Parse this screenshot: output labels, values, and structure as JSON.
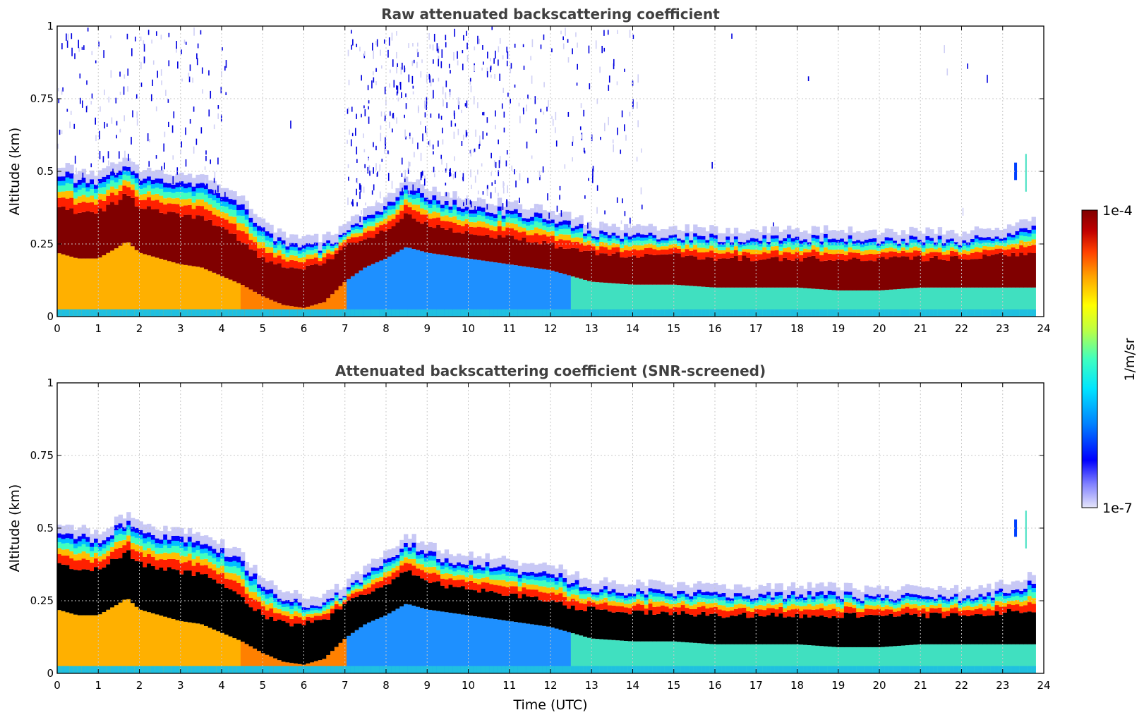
{
  "chart_data": [
    {
      "type": "heatmap",
      "title": "Raw attenuated backscattering coefficient",
      "xlabel": "",
      "ylabel": "Altitude (km)",
      "xlim": [
        0,
        24
      ],
      "ylim": [
        0,
        1
      ],
      "xticks": [
        "0",
        "1",
        "2",
        "3",
        "4",
        "5",
        "6",
        "7",
        "8",
        "9",
        "10",
        "11",
        "12",
        "13",
        "14",
        "15",
        "16",
        "17",
        "18",
        "19",
        "20",
        "21",
        "22",
        "23",
        "24"
      ],
      "yticks": [
        "0",
        "0.25",
        "0.5",
        "0.75",
        "1"
      ],
      "grid": true,
      "screened": false,
      "layer_top_km": {
        "time_utc": [
          0,
          0.5,
          1,
          1.5,
          1.7,
          2,
          2.5,
          3,
          3.5,
          4,
          4.5,
          5,
          5.5,
          6,
          6.5,
          7,
          7.5,
          8,
          8.5,
          9,
          9.5,
          10,
          11,
          12,
          12.5,
          13,
          14,
          15,
          16,
          17,
          18,
          19,
          20,
          21,
          22,
          23,
          23.8
        ],
        "altitude": [
          0.5,
          0.47,
          0.46,
          0.5,
          0.52,
          0.48,
          0.47,
          0.46,
          0.46,
          0.42,
          0.38,
          0.3,
          0.25,
          0.24,
          0.24,
          0.28,
          0.34,
          0.38,
          0.45,
          0.42,
          0.39,
          0.38,
          0.36,
          0.34,
          0.32,
          0.29,
          0.28,
          0.28,
          0.27,
          0.27,
          0.27,
          0.27,
          0.26,
          0.27,
          0.26,
          0.28,
          0.31
        ]
      },
      "dense_core_km": {
        "top": [
          0.38,
          0.36,
          0.36,
          0.4,
          0.42,
          0.38,
          0.36,
          0.35,
          0.34,
          0.31,
          0.26,
          0.2,
          0.17,
          0.17,
          0.18,
          0.24,
          0.27,
          0.3,
          0.35,
          0.32,
          0.3,
          0.29,
          0.27,
          0.25,
          0.23,
          0.22,
          0.21,
          0.21,
          0.2,
          0.2,
          0.2,
          0.2,
          0.2,
          0.2,
          0.2,
          0.21,
          0.22
        ],
        "bottom": [
          0.22,
          0.2,
          0.2,
          0.24,
          0.26,
          0.22,
          0.2,
          0.18,
          0.17,
          0.14,
          0.11,
          0.07,
          0.04,
          0.03,
          0.05,
          0.12,
          0.17,
          0.2,
          0.24,
          0.22,
          0.21,
          0.2,
          0.18,
          0.16,
          0.14,
          0.12,
          0.11,
          0.11,
          0.1,
          0.1,
          0.1,
          0.09,
          0.09,
          0.1,
          0.1,
          0.1,
          0.1
        ]
      }
    },
    {
      "type": "heatmap",
      "title": "Attenuated backscattering coefficient (SNR-screened)",
      "xlabel": "Time (UTC)",
      "ylabel": "Altitude (km)",
      "xlim": [
        0,
        24
      ],
      "ylim": [
        0,
        1
      ],
      "xticks": [
        "0",
        "1",
        "2",
        "3",
        "4",
        "5",
        "6",
        "7",
        "8",
        "9",
        "10",
        "11",
        "12",
        "13",
        "14",
        "15",
        "16",
        "17",
        "18",
        "19",
        "20",
        "21",
        "22",
        "23",
        "24"
      ],
      "yticks": [
        "0",
        "0.25",
        "0.5",
        "0.75",
        "1"
      ],
      "grid": true,
      "screened": true
    }
  ],
  "colorbar": {
    "label": "1/m/sr",
    "max_label": "1e-4",
    "min_label": "1e-7",
    "colors": [
      "#e6e6fa",
      "#0000ff",
      "#0080ff",
      "#00e5ff",
      "#40ffbf",
      "#c0ff40",
      "#ffff00",
      "#ffa000",
      "#ff4000",
      "#c00000",
      "#800000"
    ]
  }
}
